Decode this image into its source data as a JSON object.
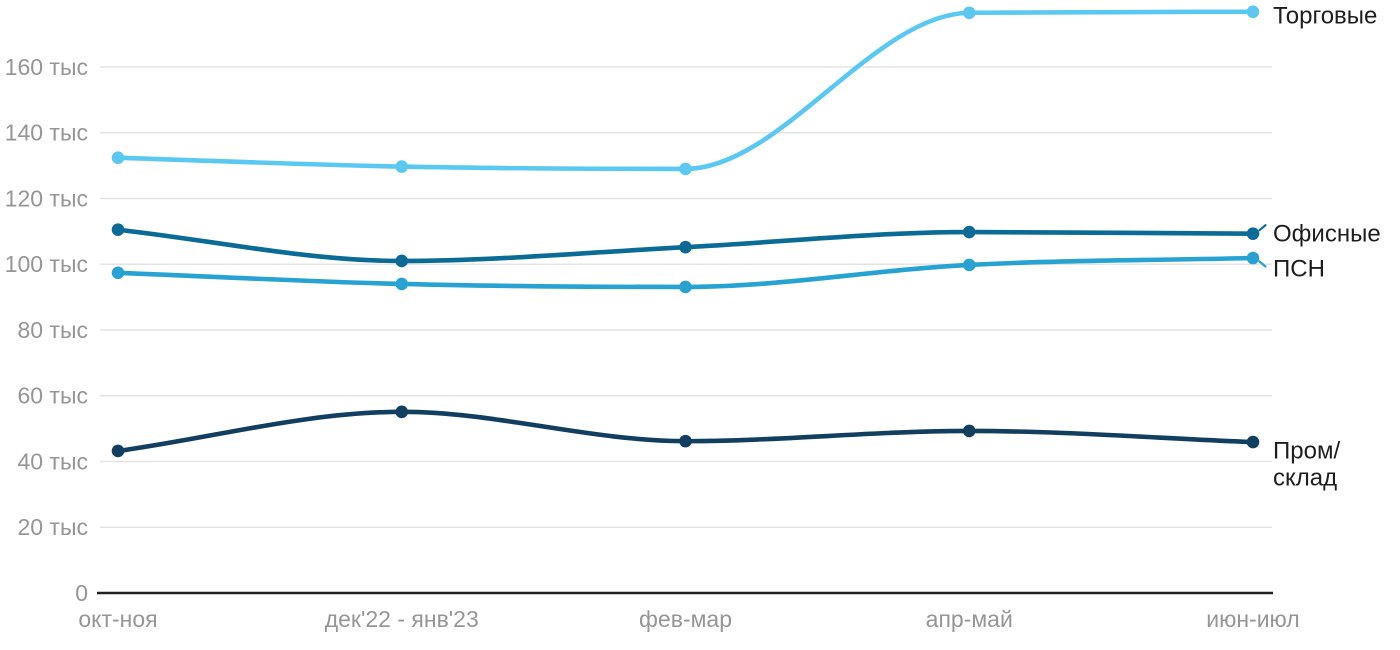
{
  "chart_data": {
    "type": "line",
    "title": "",
    "unit": "тыс",
    "categories": [
      "окт-ноя",
      "дек'22 - янв'23",
      "фев-мар",
      "апр-май",
      "июн-июл"
    ],
    "series": [
      {
        "name": "Торговые",
        "slug": "retail",
        "color": "#5BC8F2",
        "values": [
          132.4,
          129.7,
          129.0,
          176.5,
          176.8
        ]
      },
      {
        "name": "Офисные",
        "slug": "office",
        "color": "#0B6B96",
        "values": [
          110.5,
          101.0,
          105.2,
          109.8,
          109.3
        ]
      },
      {
        "name": "ПСН",
        "slug": "psn",
        "color": "#27A2D3",
        "values": [
          97.4,
          94.0,
          93.1,
          99.8,
          101.9
        ]
      },
      {
        "name": "Пром/\nсклад",
        "slug": "industrial-warehouse",
        "color": "#123F60",
        "values": [
          43.2,
          55.1,
          46.2,
          49.3,
          45.9
        ]
      }
    ],
    "y_axis": {
      "range": [
        0,
        180
      ],
      "ticks": [
        {
          "value": 0,
          "label": "0"
        },
        {
          "value": 20,
          "label": "20 тыс"
        },
        {
          "value": 40,
          "label": "40 тыс"
        },
        {
          "value": 60,
          "label": "60 тыс"
        },
        {
          "value": 80,
          "label": "80 тыс"
        },
        {
          "value": 100,
          "label": "100 тыс"
        },
        {
          "value": 120,
          "label": "120 тыс"
        },
        {
          "value": 140,
          "label": "140 тыс"
        },
        {
          "value": 160,
          "label": "160 тыс"
        }
      ]
    },
    "grid": true,
    "legend_position": "right-of-line-end"
  },
  "colors": {
    "background": "#ffffff",
    "grid_line": "#e4e4e4",
    "axis_line": "#222222",
    "tick_label": "#969696",
    "series_label": "#1e1e1e"
  }
}
